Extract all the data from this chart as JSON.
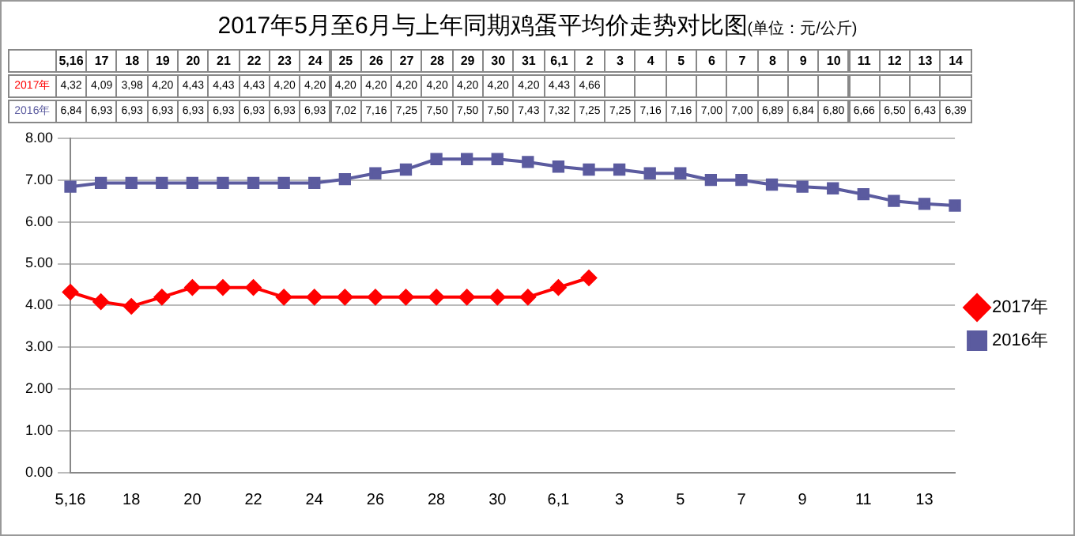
{
  "chart_data": {
    "type": "line",
    "title": "2017年5月至6月与上年同期鸡蛋平均价走势对比图",
    "subtitle": "(单位：元/公斤)",
    "categories": [
      "5,16",
      "17",
      "18",
      "19",
      "20",
      "21",
      "22",
      "23",
      "24",
      "25",
      "26",
      "27",
      "28",
      "29",
      "30",
      "31",
      "6,1",
      "2",
      "3",
      "4",
      "5",
      "6",
      "7",
      "8",
      "9",
      "10",
      "11",
      "12",
      "13",
      "14"
    ],
    "series": [
      {
        "name": "2017年",
        "color": "#ff0000",
        "marker": "diamond",
        "values": [
          4.32,
          4.09,
          3.98,
          4.2,
          4.43,
          4.43,
          4.43,
          4.2,
          4.2,
          4.2,
          4.2,
          4.2,
          4.2,
          4.2,
          4.2,
          4.2,
          4.43,
          4.66,
          null,
          null,
          null,
          null,
          null,
          null,
          null,
          null,
          null,
          null,
          null,
          null
        ],
        "value_labels": [
          "4,32",
          "4,09",
          "3,98",
          "4,20",
          "4,43",
          "4,43",
          "4,43",
          "4,20",
          "4,20",
          "4,20",
          "4,20",
          "4,20",
          "4,20",
          "4,20",
          "4,20",
          "4,20",
          "4,43",
          "4,66",
          null,
          null,
          null,
          null,
          null,
          null,
          null,
          null,
          null,
          null,
          null,
          null
        ]
      },
      {
        "name": "2016年",
        "color": "#5b5b9f",
        "marker": "square",
        "values": [
          6.84,
          6.93,
          6.93,
          6.93,
          6.93,
          6.93,
          6.93,
          6.93,
          6.93,
          7.02,
          7.16,
          7.25,
          7.5,
          7.5,
          7.5,
          7.43,
          7.32,
          7.25,
          7.25,
          7.16,
          7.16,
          7.0,
          7.0,
          6.89,
          6.84,
          6.8,
          6.66,
          6.5,
          6.43,
          6.39
        ],
        "value_labels": [
          "6,84",
          "6,93",
          "6,93",
          "6,93",
          "6,93",
          "6,93",
          "6,93",
          "6,93",
          "6,93",
          "7,02",
          "7,16",
          "7,25",
          "7,50",
          "7,50",
          "7,50",
          "7,43",
          "7,32",
          "7,25",
          "7,25",
          "7,16",
          "7,16",
          "7,00",
          "7,00",
          "6,89",
          "6,84",
          "6,80",
          "6,66",
          "6,50",
          "6,43",
          "6,39"
        ]
      }
    ],
    "ylim": [
      0,
      8
    ],
    "yticks": [
      {
        "value": 0,
        "label": "0.00"
      },
      {
        "value": 1,
        "label": "1.00"
      },
      {
        "value": 2,
        "label": "2.00"
      },
      {
        "value": 3,
        "label": "3.00"
      },
      {
        "value": 4,
        "label": "4.00"
      },
      {
        "value": 5,
        "label": "5.00"
      },
      {
        "value": 6,
        "label": "6.00"
      },
      {
        "value": 7,
        "label": "7.00"
      },
      {
        "value": 8,
        "label": "8.00"
      }
    ],
    "grid": "y",
    "legend": "right"
  }
}
